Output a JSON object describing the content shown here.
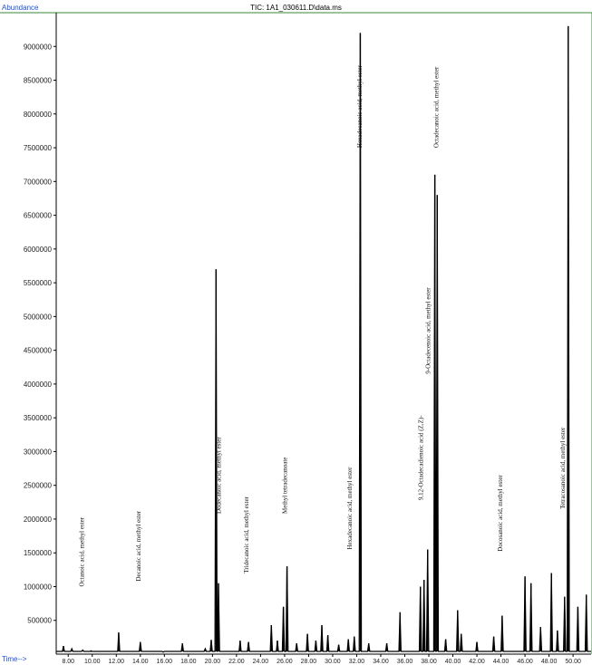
{
  "chart_data": {
    "type": "line",
    "title": "TIC: 1A1_030611.D\\data.ms",
    "ylabel": "Abundance",
    "xlabel": "Time-->",
    "xlim": [
      7.0,
      51.5
    ],
    "ylim": [
      0,
      9500000
    ],
    "y_ticks": [
      500000,
      1000000,
      1500000,
      2000000,
      2500000,
      3000000,
      3500000,
      4000000,
      4500000,
      5000000,
      5500000,
      6000000,
      6500000,
      7000000,
      7500000,
      8000000,
      8500000,
      9000000
    ],
    "y_tick_labels": [
      "500000",
      "1000000",
      "1500000",
      "2000000",
      "2500000",
      "3000000",
      "3500000",
      "4000000",
      "4500000",
      "5000000",
      "5500000",
      "6000000",
      "6500000",
      "7000000",
      "7500000",
      "8000000",
      "8500000",
      "9000000"
    ],
    "x_ticks": [
      8,
      10,
      12,
      14,
      16,
      18,
      20,
      22,
      24,
      26,
      28,
      30,
      32,
      34,
      36,
      38,
      40,
      42,
      44,
      46,
      48,
      50
    ],
    "x_tick_labels": [
      "8.00",
      "10.00",
      "12.00",
      "14.00",
      "16.00",
      "18.00",
      "20.00",
      "22.00",
      "24.00",
      "26.00",
      "28.00",
      "30.00",
      "32.00",
      "34.00",
      "36.00",
      "38.00",
      "40.00",
      "42.00",
      "44.00",
      "46.00",
      "48.00",
      "50.00"
    ],
    "peaks": [
      {
        "x": 7.6,
        "y": 120000
      },
      {
        "x": 8.3,
        "y": 80000
      },
      {
        "x": 9.2,
        "y": 60000
      },
      {
        "x": 9.9,
        "y": 50000
      },
      {
        "x": 11.0,
        "y": 40000
      },
      {
        "x": 12.2,
        "y": 320000
      },
      {
        "x": 14.0,
        "y": 180000
      },
      {
        "x": 15.9,
        "y": 30000
      },
      {
        "x": 17.5,
        "y": 160000
      },
      {
        "x": 19.4,
        "y": 80000
      },
      {
        "x": 19.9,
        "y": 210000
      },
      {
        "x": 20.3,
        "y": 5700000
      },
      {
        "x": 20.5,
        "y": 1050000
      },
      {
        "x": 22.3,
        "y": 200000
      },
      {
        "x": 23.0,
        "y": 180000
      },
      {
        "x": 24.9,
        "y": 430000
      },
      {
        "x": 25.4,
        "y": 200000
      },
      {
        "x": 25.9,
        "y": 700000
      },
      {
        "x": 26.2,
        "y": 1300000
      },
      {
        "x": 27.0,
        "y": 160000
      },
      {
        "x": 27.9,
        "y": 300000
      },
      {
        "x": 28.6,
        "y": 200000
      },
      {
        "x": 29.1,
        "y": 430000
      },
      {
        "x": 29.6,
        "y": 280000
      },
      {
        "x": 30.5,
        "y": 140000
      },
      {
        "x": 31.3,
        "y": 220000
      },
      {
        "x": 31.8,
        "y": 260000
      },
      {
        "x": 32.3,
        "y": 9200000
      },
      {
        "x": 33.0,
        "y": 160000
      },
      {
        "x": 34.5,
        "y": 160000
      },
      {
        "x": 35.6,
        "y": 620000
      },
      {
        "x": 37.3,
        "y": 1000000
      },
      {
        "x": 37.6,
        "y": 1100000
      },
      {
        "x": 37.9,
        "y": 1550000
      },
      {
        "x": 38.5,
        "y": 7100000
      },
      {
        "x": 38.7,
        "y": 6800000
      },
      {
        "x": 39.4,
        "y": 220000
      },
      {
        "x": 40.4,
        "y": 650000
      },
      {
        "x": 40.7,
        "y": 300000
      },
      {
        "x": 42.0,
        "y": 180000
      },
      {
        "x": 43.4,
        "y": 260000
      },
      {
        "x": 44.1,
        "y": 570000
      },
      {
        "x": 46.0,
        "y": 1150000
      },
      {
        "x": 46.5,
        "y": 1050000
      },
      {
        "x": 47.3,
        "y": 400000
      },
      {
        "x": 48.2,
        "y": 1200000
      },
      {
        "x": 48.7,
        "y": 350000
      },
      {
        "x": 49.3,
        "y": 850000
      },
      {
        "x": 49.6,
        "y": 9300000
      },
      {
        "x": 50.4,
        "y": 700000
      },
      {
        "x": 51.1,
        "y": 880000
      }
    ],
    "peak_labels": [
      {
        "text": "Octanoic acid, methyl ester",
        "x": 9.3,
        "y": 1000000
      },
      {
        "text": "Decanoic acid, methyl ester",
        "x": 14.0,
        "y": 1080000
      },
      {
        "text": "Dodecanoic acid, methyl ester",
        "x": 20.7,
        "y": 2080000
      },
      {
        "text": "Tridecanoic acid, methyl ester",
        "x": 23.0,
        "y": 1200000
      },
      {
        "text": "Methyl tetradecanoate",
        "x": 26.2,
        "y": 2080000
      },
      {
        "text": "Hexadecanoic acid, methyl ester",
        "x": 31.6,
        "y": 1550000
      },
      {
        "text": "Hexadecanoic acid, methyl ester",
        "x": 32.4,
        "y": 7500000
      },
      {
        "text": "9,12-Octadecadienoic acid (Z,Z)-",
        "x": 37.5,
        "y": 2280000
      },
      {
        "text": "9-Octadecenoic acid, methyl ester",
        "x": 38.1,
        "y": 4150000
      },
      {
        "text": "Octadecanoic acid, methyl ester",
        "x": 38.8,
        "y": 7500000
      },
      {
        "text": "Docosanoic acid, methyl ester",
        "x": 44.1,
        "y": 1520000
      },
      {
        "text": "Tetracosanoic acid, methyl ester",
        "x": 49.3,
        "y": 2150000
      }
    ],
    "grid": false,
    "colors": {
      "axis_text_accent": "#1a4fd6",
      "trace": "#000000",
      "frame": "#3a8a3a"
    }
  }
}
